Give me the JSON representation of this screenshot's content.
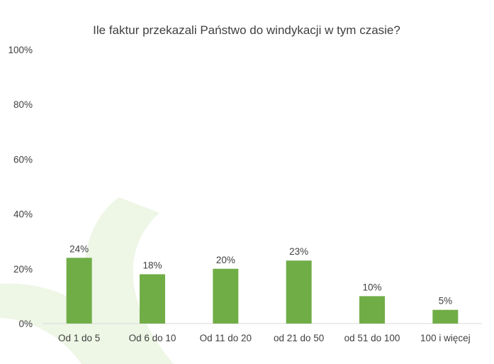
{
  "chart_data": {
    "type": "bar",
    "title": "Ile faktur przekazali Państwo do windykacji w tym czasie?",
    "categories": [
      "Od 1 do 5",
      "Od 6 do 10",
      "Od 11 do 20",
      "od 21 do 50",
      "od 51 do 100",
      "100 i więcej"
    ],
    "values": [
      24,
      18,
      20,
      23,
      10,
      5
    ],
    "data_labels": [
      "24%",
      "18%",
      "20%",
      "23%",
      "10%",
      "5%"
    ],
    "y_ticks": [
      "0%",
      "20%",
      "40%",
      "60%",
      "80%",
      "100%"
    ],
    "ylim": [
      0,
      100
    ],
    "grid": false,
    "legend": "none",
    "colors": {
      "bar": "#70ad47",
      "watermark": "#eef6e6",
      "text": "#404040"
    }
  }
}
